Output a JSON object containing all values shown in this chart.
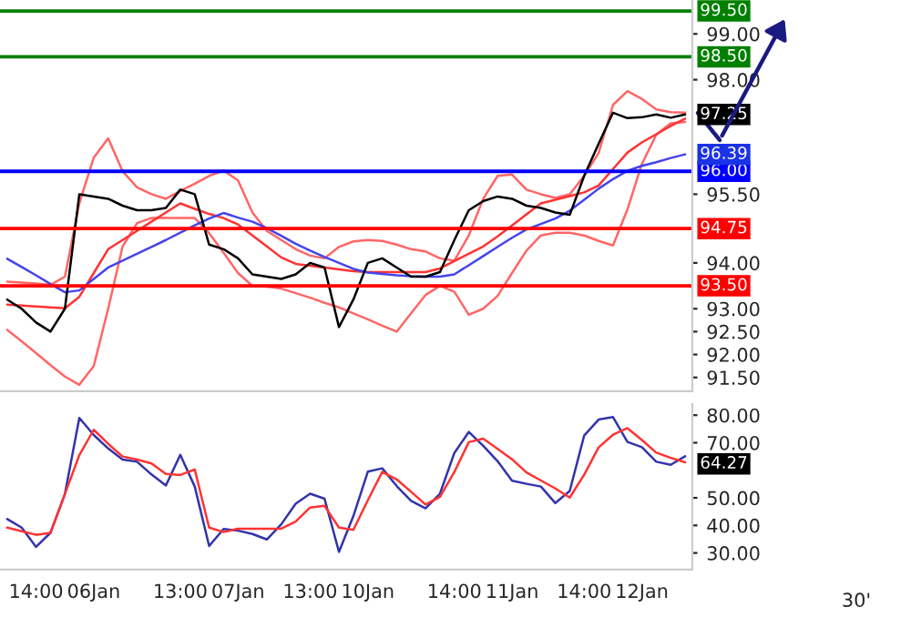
{
  "chart_data": [
    {
      "type": "line",
      "categories": [
        null,
        null,
        null,
        null,
        null,
        null,
        null,
        null,
        null,
        null,
        null,
        null,
        null,
        null,
        null,
        null,
        null,
        null,
        null,
        null,
        null,
        null,
        null,
        null,
        null,
        null,
        null,
        null,
        null,
        null,
        null,
        null,
        null,
        null,
        null,
        null,
        null,
        null,
        null,
        null,
        null,
        null,
        null,
        null,
        null,
        null,
        null,
        null
      ],
      "ylim": [
        91.2,
        99.74
      ],
      "tick_labels": "y",
      "yticks": [
        {
          "value": 91.5,
          "label": "91.50"
        },
        {
          "value": 92,
          "label": "92.00"
        },
        {
          "value": 92.5,
          "label": "92.50"
        },
        {
          "value": 93,
          "label": "93.00"
        },
        {
          "value": 94,
          "label": "94.00"
        },
        {
          "value": 95.5,
          "label": "95.50"
        },
        {
          "value": 98,
          "label": "98.00"
        },
        {
          "value": 99,
          "label": "99.00"
        }
      ],
      "series": [
        {
          "color": "#ff6666",
          "values": [
            93.59,
            93.57,
            93.55,
            93.52,
            93.7,
            95.3,
            96.3,
            96.72,
            96.0,
            95.65,
            95.5,
            95.4,
            95.57,
            95.73,
            95.9,
            96.02,
            95.8,
            95.1,
            94.7,
            94.5,
            94.3,
            94.16,
            94.1,
            94.35,
            94.47,
            94.5,
            94.48,
            94.4,
            94.3,
            94.25,
            94.1,
            94.05,
            94.6,
            95.4,
            95.9,
            95.93,
            95.6,
            95.5,
            95.42,
            95.5,
            95.9,
            96.4,
            97.45,
            97.75,
            97.58,
            97.35,
            97.29,
            97.28
          ]
        },
        {
          "color": "#ff6666",
          "values": [
            92.54,
            92.29,
            92.03,
            91.77,
            91.52,
            91.34,
            91.75,
            93.0,
            94.36,
            94.87,
            94.98,
            94.98,
            94.98,
            94.98,
            94.65,
            94.22,
            93.78,
            93.5,
            93.48,
            93.44,
            93.34,
            93.24,
            93.13,
            93.03,
            92.9,
            92.77,
            92.63,
            92.5,
            92.9,
            93.3,
            93.5,
            93.37,
            92.87,
            93.0,
            93.28,
            93.78,
            94.27,
            94.6,
            94.66,
            94.66,
            94.6,
            94.48,
            94.38,
            95.17,
            96.16,
            96.8,
            97.05,
            97.08
          ]
        },
        {
          "color": "#ff3333",
          "values": [
            93.09,
            93.07,
            93.05,
            93.03,
            93.01,
            93.26,
            93.78,
            94.3,
            94.5,
            94.7,
            94.9,
            95.1,
            95.3,
            95.18,
            95.07,
            94.98,
            94.84,
            94.6,
            94.36,
            94.12,
            93.98,
            93.94,
            93.9,
            93.86,
            93.82,
            93.8,
            93.8,
            93.8,
            93.8,
            93.8,
            93.88,
            94.04,
            94.2,
            94.36,
            94.58,
            94.82,
            95.06,
            95.3,
            95.38,
            95.46,
            95.54,
            95.69,
            96.05,
            96.41,
            96.63,
            96.81,
            96.99,
            97.15
          ]
        },
        {
          "color": "#4444ee",
          "values": [
            94.09,
            93.91,
            93.73,
            93.54,
            93.36,
            93.4,
            93.65,
            93.9,
            94.05,
            94.2,
            94.35,
            94.5,
            94.66,
            94.82,
            94.97,
            95.09,
            94.99,
            94.9,
            94.76,
            94.59,
            94.42,
            94.27,
            94.13,
            94.0,
            93.87,
            93.79,
            93.76,
            93.73,
            93.71,
            93.7,
            93.7,
            93.75,
            93.95,
            94.15,
            94.35,
            94.55,
            94.73,
            94.85,
            94.97,
            95.14,
            95.38,
            95.62,
            95.83,
            96.01,
            96.12,
            96.2,
            96.29,
            96.37
          ]
        },
        {
          "color": "#000000",
          "values": [
            93.2,
            93.0,
            92.7,
            92.5,
            93.0,
            95.5,
            95.45,
            95.4,
            95.25,
            95.15,
            95.15,
            95.2,
            95.6,
            95.5,
            94.4,
            94.3,
            94.1,
            93.75,
            93.7,
            93.65,
            93.75,
            94.0,
            93.9,
            92.6,
            93.2,
            94.0,
            94.1,
            93.9,
            93.7,
            93.7,
            93.8,
            94.5,
            95.15,
            95.35,
            95.45,
            95.4,
            95.25,
            95.2,
            95.1,
            95.05,
            95.9,
            96.6,
            97.28,
            97.16,
            97.18,
            97.24,
            97.17,
            97.24
          ]
        }
      ],
      "ref_lines": [
        {
          "axis": "y",
          "value": 99.5,
          "label": "99.50",
          "color": "#008000"
        },
        {
          "axis": "y",
          "value": 98.5,
          "label": "98.50",
          "color": "#008000"
        },
        {
          "axis": "y",
          "value": 96.0,
          "label": "96.00",
          "color": "#0000ff"
        },
        {
          "axis": "y",
          "value": 94.75,
          "label": "94.75",
          "color": "#ff0000"
        },
        {
          "axis": "y",
          "value": 93.5,
          "label": "93.50",
          "color": "#ff0000"
        }
      ],
      "annotations": [
        "97.25",
        "96.39"
      ]
    },
    {
      "type": "line",
      "categories": [
        null,
        null,
        "14:00",
        null,
        null,
        null,
        "06Jan",
        null,
        null,
        null,
        null,
        null,
        "13:00",
        null,
        null,
        null,
        "07Jan",
        null,
        null,
        null,
        null,
        "13:00",
        null,
        null,
        null,
        "10Jan",
        null,
        null,
        null,
        null,
        null,
        "14:00",
        null,
        null,
        null,
        "11Jan",
        null,
        null,
        null,
        null,
        "14:00",
        null,
        null,
        null,
        "12Jan",
        null,
        null,
        null
      ],
      "ylim": [
        24,
        84
      ],
      "yticks": [
        {
          "value": 30,
          "label": "30.00"
        },
        {
          "value": 40,
          "label": "40.00"
        },
        {
          "value": 50,
          "label": "50.00"
        },
        {
          "value": 70,
          "label": "70.00"
        },
        {
          "value": 80,
          "label": "80.00"
        }
      ],
      "series": [
        {
          "color": "#3333aa",
          "values": [
            42.3,
            39.2,
            32.2,
            37.3,
            51.4,
            79,
            72.8,
            67.9,
            63.9,
            63.1,
            58.5,
            54.5,
            65.6,
            54.1,
            32.5,
            38.7,
            38.1,
            36.9,
            34.9,
            40.4,
            47.9,
            51.5,
            49.7,
            30.4,
            43.4,
            59.5,
            60.7,
            54.3,
            48.9,
            46.2,
            51.5,
            66.3,
            73.9,
            68.9,
            63.3,
            56.2,
            55.1,
            54.1,
            48.1,
            52.5,
            72.6,
            78.4,
            79.3,
            70.3,
            68.4,
            63.1,
            62,
            65.1
          ]
        },
        {
          "color": "#ff3333",
          "values": [
            39.2,
            37.9,
            36.6,
            37.3,
            51.4,
            65.5,
            74.7,
            69.6,
            65,
            63.9,
            62.5,
            58.7,
            58.3,
            60.3,
            39.2,
            37.6,
            38.8,
            38.8,
            38.8,
            38.8,
            41.4,
            46.5,
            47.1,
            39.2,
            38.4,
            49.1,
            59.4,
            56.7,
            52.2,
            47.6,
            50.3,
            59.4,
            70.2,
            71.5,
            67.8,
            64,
            59.2,
            56.3,
            53.4,
            50.1,
            58.4,
            68.3,
            72.9,
            75.3,
            71,
            66.4,
            64.5,
            62.9
          ]
        }
      ],
      "annotations": [
        "64.27",
        "30'"
      ]
    }
  ]
}
